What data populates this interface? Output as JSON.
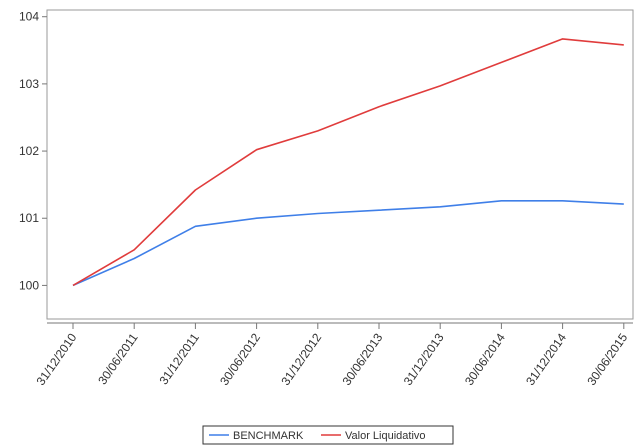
{
  "chart_data": {
    "type": "line",
    "categories": [
      "31/12/2010",
      "30/06/2011",
      "31/12/2011",
      "30/06/2012",
      "31/12/2012",
      "30/06/2013",
      "31/12/2013",
      "30/06/2014",
      "31/12/2014",
      "30/06/2015"
    ],
    "series": [
      {
        "name": "BENCHMARK",
        "color": "#3f7fe8",
        "values": [
          100.0,
          100.4,
          100.88,
          101.0,
          101.07,
          101.12,
          101.17,
          101.26,
          101.26,
          101.21
        ]
      },
      {
        "name": "Valor Liquidativo",
        "color": "#e03c3c",
        "values": [
          100.0,
          100.53,
          101.42,
          102.02,
          102.3,
          102.66,
          102.97,
          103.32,
          103.67,
          103.58
        ]
      }
    ],
    "y_ticks": [
      "100",
      "101",
      "102",
      "103",
      "104"
    ],
    "ylim": [
      99.5,
      104.1
    ],
    "grid": false,
    "legend_position": "bottom-center",
    "title": "",
    "xlabel": "",
    "ylabel": ""
  }
}
